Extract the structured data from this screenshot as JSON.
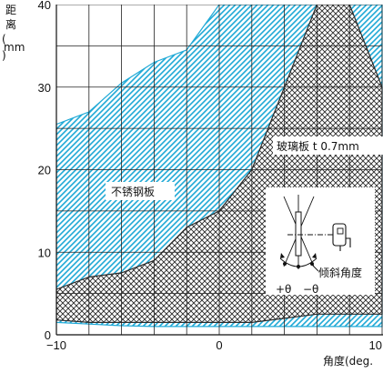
{
  "chart_data": {
    "type": "area",
    "x_axis": {
      "label": "角度(deg.",
      "range": [
        -10,
        10
      ],
      "ticks": [
        -10,
        0,
        10
      ],
      "tick_labels": [
        "−10",
        "0",
        "10"
      ]
    },
    "y_axis": {
      "label_chars": [
        "距",
        "离",
        "(",
        "mm",
        ")"
      ],
      "range": [
        0,
        40
      ],
      "ticks": [
        0,
        10,
        20,
        30,
        40
      ],
      "tick_labels": [
        "0",
        "10",
        "20",
        "30",
        "40"
      ]
    },
    "grid": true,
    "series": [
      {
        "name": "不锈钢板",
        "fill_color": "#1fa9d6",
        "pattern": "diagonal-hatch",
        "upper": {
          "x": [
            -10,
            -8,
            -6,
            -4,
            -2,
            0,
            10
          ],
          "y": [
            25.5,
            27,
            30.5,
            33,
            34.5,
            40,
            40
          ]
        },
        "lower": {
          "x": [
            -10,
            -8,
            -6,
            -4,
            -2,
            0,
            2,
            4,
            6,
            8,
            10
          ],
          "y": [
            1.5,
            1.3,
            1.1,
            1.0,
            1.0,
            1.0,
            1.0,
            1.0,
            1.0,
            1.0,
            1.0
          ]
        }
      },
      {
        "name": "玻璃板 t 0.7mm",
        "fill_color": "#2b2b2b",
        "pattern": "cross-hatch",
        "upper": {
          "x": [
            -10,
            -8,
            -6,
            -4,
            -2,
            0,
            2,
            4,
            6,
            8,
            9,
            10
          ],
          "y": [
            5.5,
            7,
            7.5,
            9,
            13,
            15,
            20,
            30,
            40,
            40,
            35,
            30
          ]
        },
        "lower": {
          "x": [
            -10,
            -8,
            -6,
            -4,
            -2,
            0,
            2,
            4,
            6,
            8,
            10
          ],
          "y": [
            1.8,
            1.5,
            1.5,
            1.5,
            1.5,
            1.5,
            1.5,
            2,
            2.5,
            2.5,
            2.5
          ]
        }
      }
    ],
    "annotations": {
      "glass_label": "玻璃板 t 0.7mm",
      "steel_label": "不锈钢板",
      "inset": {
        "tilt_label": "倾斜角度",
        "plus_theta": "+θ",
        "minus_theta": "−θ"
      }
    }
  }
}
